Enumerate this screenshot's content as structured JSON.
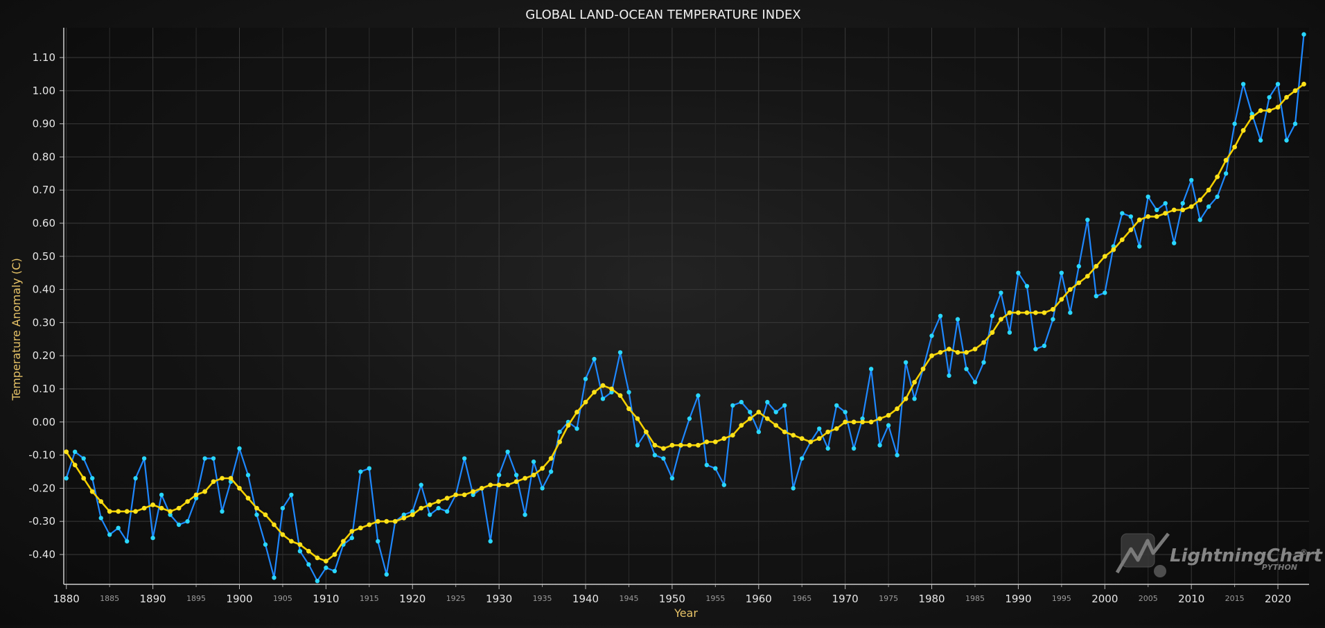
{
  "chart_data": {
    "type": "line",
    "title": "GLOBAL LAND-OCEAN TEMPERATURE INDEX",
    "xlabel": "Year",
    "ylabel": "Temperature Anomaly (C)",
    "xlim": [
      1879.7,
      2023.6
    ],
    "ylim": [
      -0.49,
      1.19
    ],
    "y_ticks": [
      "1.10",
      "1.00",
      "0.90",
      "0.80",
      "0.70",
      "0.60",
      "0.50",
      "0.40",
      "0.30",
      "0.20",
      "0.10",
      "0.00",
      "-0.10",
      "-0.20",
      "-0.30",
      "-0.40"
    ],
    "x_major_ticks": [
      "1880",
      "1890",
      "1900",
      "1910",
      "1920",
      "1930",
      "1940",
      "1950",
      "1960",
      "1970",
      "1980",
      "1990",
      "2000",
      "2010",
      "2020"
    ],
    "x_minor_ticks": [
      "1885",
      "1895",
      "1905",
      "1915",
      "1925",
      "1935",
      "1945",
      "1955",
      "1965",
      "1975",
      "1985",
      "1995",
      "2005",
      "2015"
    ],
    "grid": true,
    "legend": "none",
    "x_start": 1880,
    "series": [
      {
        "color": "#1e88ff",
        "marker_color": "#29d7ff",
        "values": [
          -0.17,
          -0.09,
          -0.11,
          -0.17,
          -0.29,
          -0.34,
          -0.32,
          -0.36,
          -0.17,
          -0.11,
          -0.35,
          -0.22,
          -0.28,
          -0.31,
          -0.3,
          -0.23,
          -0.11,
          -0.11,
          -0.27,
          -0.18,
          -0.08,
          -0.16,
          -0.28,
          -0.37,
          -0.47,
          -0.26,
          -0.22,
          -0.39,
          -0.43,
          -0.48,
          -0.44,
          -0.45,
          -0.37,
          -0.35,
          -0.15,
          -0.14,
          -0.36,
          -0.46,
          -0.3,
          -0.28,
          -0.27,
          -0.19,
          -0.28,
          -0.26,
          -0.27,
          -0.22,
          -0.11,
          -0.22,
          -0.2,
          -0.36,
          -0.16,
          -0.09,
          -0.16,
          -0.28,
          -0.12,
          -0.2,
          -0.15,
          -0.03,
          0.0,
          -0.02,
          0.13,
          0.19,
          0.07,
          0.09,
          0.21,
          0.09,
          -0.07,
          -0.03,
          -0.1,
          -0.11,
          -0.17,
          -0.07,
          0.01,
          0.08,
          -0.13,
          -0.14,
          -0.19,
          0.05,
          0.06,
          0.03,
          -0.03,
          0.06,
          0.03,
          0.05,
          -0.2,
          -0.11,
          -0.06,
          -0.02,
          -0.08,
          0.05,
          0.03,
          -0.08,
          0.01,
          0.16,
          -0.07,
          -0.01,
          -0.1,
          0.18,
          0.07,
          0.16,
          0.26,
          0.32,
          0.14,
          0.31,
          0.16,
          0.12,
          0.18,
          0.32,
          0.39,
          0.27,
          0.45,
          0.41,
          0.22,
          0.23,
          0.31,
          0.45,
          0.33,
          0.47,
          0.61,
          0.38,
          0.39,
          0.53,
          0.63,
          0.62,
          0.53,
          0.68,
          0.64,
          0.66,
          0.54,
          0.66,
          0.73,
          0.61,
          0.65,
          0.68,
          0.75,
          0.9,
          1.02,
          0.93,
          0.85,
          0.98,
          1.02,
          0.85,
          0.9,
          1.17
        ]
      },
      {
        "color": "#f5d000",
        "marker_color": "#ffe21a",
        "values": [
          -0.09,
          -0.13,
          -0.17,
          -0.21,
          -0.24,
          -0.27,
          -0.27,
          -0.27,
          -0.27,
          -0.26,
          -0.25,
          -0.26,
          -0.27,
          -0.26,
          -0.24,
          -0.22,
          -0.21,
          -0.18,
          -0.17,
          -0.17,
          -0.2,
          -0.23,
          -0.26,
          -0.28,
          -0.31,
          -0.34,
          -0.36,
          -0.37,
          -0.39,
          -0.41,
          -0.42,
          -0.4,
          -0.36,
          -0.33,
          -0.32,
          -0.31,
          -0.3,
          -0.3,
          -0.3,
          -0.29,
          -0.28,
          -0.26,
          -0.25,
          -0.24,
          -0.23,
          -0.22,
          -0.22,
          -0.21,
          -0.2,
          -0.19,
          -0.19,
          -0.19,
          -0.18,
          -0.17,
          -0.16,
          -0.14,
          -0.11,
          -0.06,
          -0.01,
          0.03,
          0.06,
          0.09,
          0.11,
          0.1,
          0.08,
          0.04,
          0.01,
          -0.03,
          -0.07,
          -0.08,
          -0.07,
          -0.07,
          -0.07,
          -0.07,
          -0.06,
          -0.06,
          -0.05,
          -0.04,
          -0.01,
          0.01,
          0.03,
          0.01,
          -0.01,
          -0.03,
          -0.04,
          -0.05,
          -0.06,
          -0.05,
          -0.03,
          -0.02,
          0.0,
          0.0,
          0.0,
          0.0,
          0.01,
          0.02,
          0.04,
          0.07,
          0.12,
          0.16,
          0.2,
          0.21,
          0.22,
          0.21,
          0.21,
          0.22,
          0.24,
          0.27,
          0.31,
          0.33,
          0.33,
          0.33,
          0.33,
          0.33,
          0.34,
          0.37,
          0.4,
          0.42,
          0.44,
          0.47,
          0.5,
          0.52,
          0.55,
          0.58,
          0.61,
          0.62,
          0.62,
          0.63,
          0.64,
          0.64,
          0.65,
          0.67,
          0.7,
          0.74,
          0.79,
          0.83,
          0.88,
          0.92,
          0.94,
          0.94,
          0.95,
          0.98,
          1.0,
          1.02
        ]
      }
    ]
  },
  "watermark": {
    "brand": "LightningChart",
    "registered": "®",
    "sub": "PYTHON"
  }
}
